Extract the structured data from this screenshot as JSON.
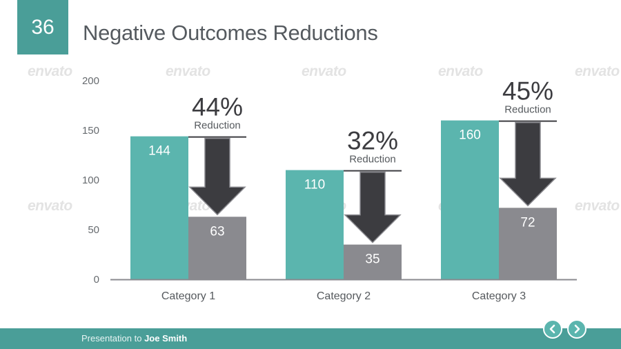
{
  "slide": {
    "number": "36",
    "title": "Negative Outcomes Reductions"
  },
  "watermark": "envato",
  "footer": {
    "prefix": "Presentation to",
    "name": "Joe Smith"
  },
  "nav": {
    "prev_icon": "chevron-left-icon",
    "next_icon": "chevron-right-icon"
  },
  "colors": {
    "accent": "#4a9e98",
    "before_bar": "#5bb5ae",
    "after_bar": "#8a8a8f",
    "arrow": "#3c3c40"
  },
  "chart_data": {
    "type": "bar",
    "categories": [
      "Category 1",
      "Category 2",
      "Category 3"
    ],
    "series": [
      {
        "values": [
          144,
          110,
          160
        ]
      },
      {
        "values": [
          63,
          35,
          72
        ]
      }
    ],
    "yticks": [
      "0",
      "50",
      "100",
      "150",
      "200"
    ],
    "ylim": [
      0,
      200
    ],
    "annotations": [
      {
        "category": "Category 1",
        "percent": "44%",
        "label": "Reduction"
      },
      {
        "category": "Category 2",
        "percent": "32%",
        "label": "Reduction"
      },
      {
        "category": "Category 3",
        "percent": "45%",
        "label": "Reduction"
      }
    ],
    "grid": false
  }
}
